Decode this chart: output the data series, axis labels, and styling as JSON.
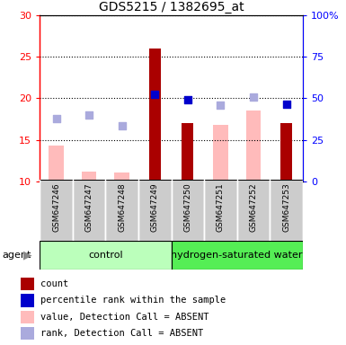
{
  "title": "GDS5215 / 1382695_at",
  "samples": [
    "GSM647246",
    "GSM647247",
    "GSM647248",
    "GSM647249",
    "GSM647250",
    "GSM647251",
    "GSM647252",
    "GSM647253"
  ],
  "bar_values": [
    null,
    null,
    null,
    26.0,
    17.0,
    null,
    null,
    17.0
  ],
  "bar_color": "#aa0000",
  "absent_bar_values": [
    14.3,
    11.2,
    11.0,
    null,
    null,
    16.8,
    18.5,
    null
  ],
  "absent_bar_color": "#ffbbbb",
  "rank_dots": [
    17.5,
    18.0,
    16.7,
    null,
    null,
    19.2,
    20.2,
    null
  ],
  "rank_dot_color": "#aaaadd",
  "percentile_dots_y": [
    null,
    null,
    null,
    20.5,
    19.8,
    null,
    null,
    19.3
  ],
  "percentile_dot_color": "#0000cc",
  "ylim_left": [
    10,
    30
  ],
  "ylim_right": [
    0,
    100
  ],
  "yticks_left": [
    10,
    15,
    20,
    25,
    30
  ],
  "yticks_right": [
    0,
    25,
    50,
    75,
    100
  ],
  "yticklabels_right": [
    "0",
    "25",
    "50",
    "75",
    "100%"
  ],
  "control_color": "#bbffbb",
  "h2_color": "#55ee55",
  "legend_items": [
    {
      "label": "count",
      "color": "#aa0000"
    },
    {
      "label": "percentile rank within the sample",
      "color": "#0000cc"
    },
    {
      "label": "value, Detection Call = ABSENT",
      "color": "#ffbbbb"
    },
    {
      "label": "rank, Detection Call = ABSENT",
      "color": "#aaaadd"
    }
  ],
  "bar_width": 0.35,
  "absent_bar_width": 0.45,
  "dot_size": 40,
  "column_bg_color": "#cccccc",
  "plot_bg_color": "#ffffff"
}
